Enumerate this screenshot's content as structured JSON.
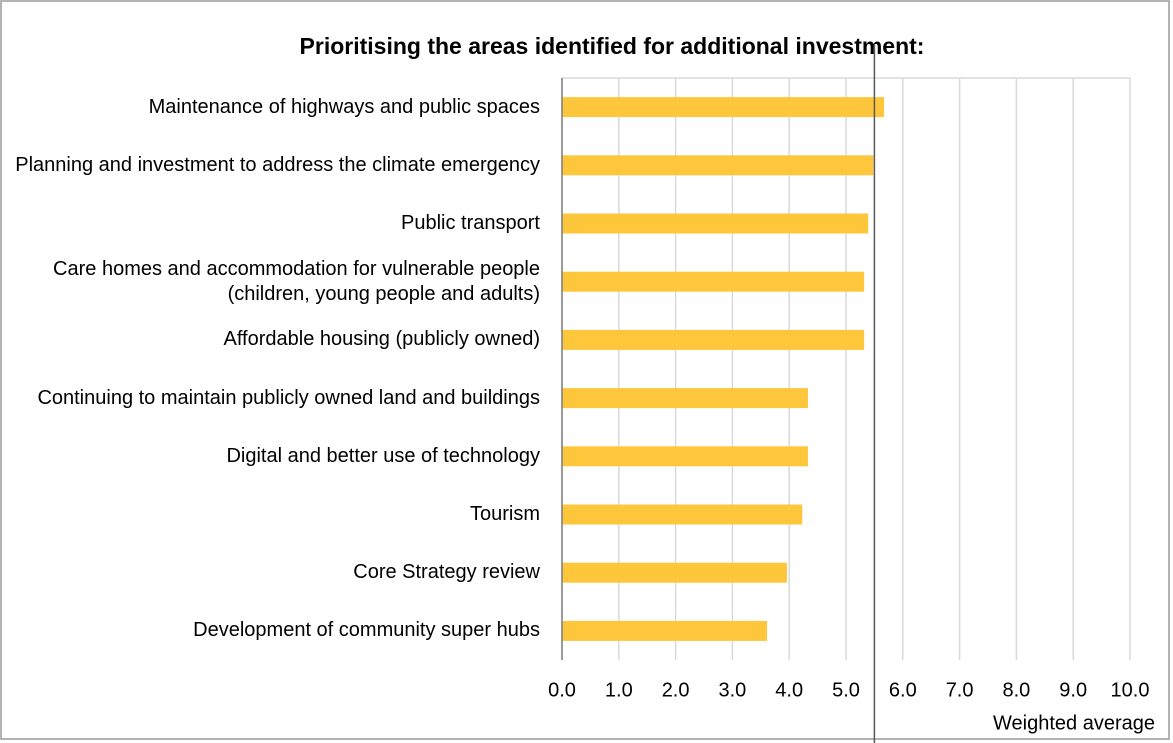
{
  "chart_data": {
    "type": "barh",
    "title": "Prioritising the areas identified for additional investment:",
    "categories": [
      "Maintenance of highways and public spaces",
      "Planning and investment to address the climate emergency",
      "Public transport",
      "Care homes and accommodation for vulnerable people (children, young people and adults)",
      "Affordable housing (publicly owned)",
      "Continuing to maintain publicly owned land and buildings",
      "Digital and better use of technology",
      "Tourism",
      "Core Strategy review",
      "Development of community super hubs"
    ],
    "values": [
      5.67,
      5.48,
      5.39,
      5.32,
      5.32,
      4.33,
      4.33,
      4.23,
      3.96,
      3.61
    ],
    "color": "#fdc63b",
    "xlabel": "Weighted average",
    "xlim": [
      0,
      10
    ],
    "xticks": [
      {
        "value": 0,
        "label": "0.0"
      },
      {
        "value": 1,
        "label": "1.0"
      },
      {
        "value": 2,
        "label": "2.0"
      },
      {
        "value": 3,
        "label": "3.0"
      },
      {
        "value": 4,
        "label": "4.0"
      },
      {
        "value": 5,
        "label": "5.0"
      },
      {
        "value": 6,
        "label": "6.0"
      },
      {
        "value": 7,
        "label": "7.0"
      },
      {
        "value": 8,
        "label": "8.0"
      },
      {
        "value": 9,
        "label": "9.0"
      },
      {
        "value": 10,
        "label": "10.0"
      }
    ],
    "reference_line": 5.5,
    "grid": true
  }
}
